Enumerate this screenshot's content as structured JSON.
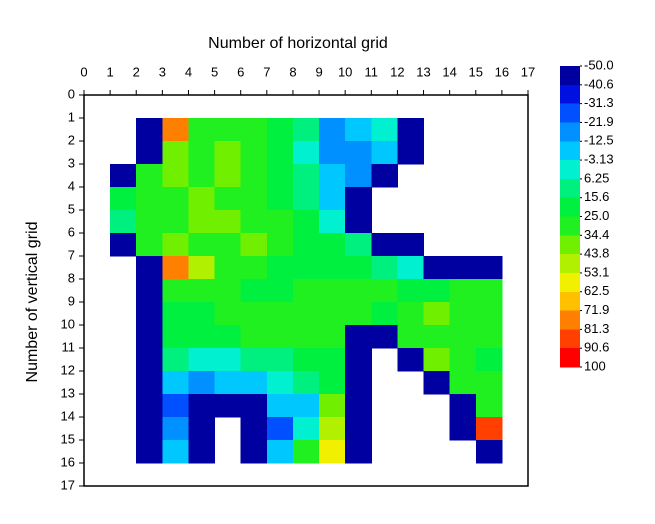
{
  "chart_data": {
    "type": "contour",
    "xlabel": "Number of horizontal grid",
    "ylabel": "Number of vertical grid",
    "xlim": [
      0,
      17
    ],
    "ylim": [
      0,
      17
    ],
    "y_inverted": true,
    "xticks": [
      0,
      1,
      2,
      3,
      4,
      5,
      6,
      7,
      8,
      9,
      10,
      11,
      12,
      13,
      14,
      15,
      16,
      17
    ],
    "yticks": [
      0,
      1,
      2,
      3,
      4,
      5,
      6,
      7,
      8,
      9,
      10,
      11,
      12,
      13,
      14,
      15,
      16,
      17
    ],
    "x": [
      1,
      2,
      3,
      4,
      5,
      6,
      7,
      8,
      9,
      10,
      11,
      12,
      13,
      14,
      15
    ],
    "y": [
      1,
      2,
      3,
      4,
      5,
      6,
      7,
      8,
      9,
      10,
      11,
      12,
      13,
      14,
      15
    ],
    "z": [
      [
        null,
        -50,
        80,
        30,
        30,
        30,
        20,
        10,
        -15,
        -10,
        0,
        -50,
        null,
        null,
        null
      ],
      [
        null,
        -50,
        35,
        30,
        35,
        30,
        25,
        5,
        -15,
        -20,
        -5,
        -50,
        null,
        null,
        null
      ],
      [
        -50,
        30,
        35,
        30,
        35,
        30,
        25,
        10,
        -10,
        -20,
        -50,
        null,
        null,
        null,
        null
      ],
      [
        20,
        30,
        30,
        35,
        30,
        30,
        25,
        10,
        -5,
        -50,
        null,
        null,
        null,
        null,
        null
      ],
      [
        15,
        30,
        30,
        35,
        40,
        30,
        30,
        20,
        5,
        -50,
        null,
        null,
        null,
        null,
        null
      ],
      [
        -50,
        30,
        35,
        30,
        30,
        35,
        30,
        25,
        20,
        10,
        -50,
        -50,
        null,
        null,
        null
      ],
      [
        null,
        -50,
        75,
        45,
        30,
        30,
        25,
        25,
        25,
        20,
        10,
        5,
        -50,
        -50,
        -50
      ],
      [
        null,
        -50,
        30,
        30,
        30,
        25,
        25,
        30,
        30,
        30,
        30,
        25,
        25,
        30,
        30
      ],
      [
        null,
        -50,
        25,
        25,
        30,
        30,
        30,
        30,
        30,
        30,
        25,
        30,
        35,
        30,
        30
      ],
      [
        null,
        -50,
        20,
        20,
        25,
        30,
        30,
        30,
        30,
        -50,
        -50,
        30,
        30,
        30,
        30
      ],
      [
        null,
        -50,
        10,
        5,
        5,
        10,
        15,
        20,
        25,
        -50,
        null,
        -50,
        35,
        30,
        25
      ],
      [
        null,
        -50,
        -10,
        -20,
        -10,
        -5,
        0,
        10,
        20,
        -50,
        null,
        null,
        -50,
        30,
        30
      ],
      [
        null,
        -50,
        -30,
        -50,
        -50,
        -50,
        -10,
        -5,
        40,
        -50,
        null,
        null,
        null,
        -50,
        30
      ],
      [
        null,
        -50,
        -20,
        -50,
        null,
        -50,
        -25,
        0,
        50,
        -50,
        null,
        null,
        null,
        -50,
        90
      ],
      [
        null,
        -50,
        -10,
        -50,
        null,
        -50,
        -10,
        30,
        60,
        -50,
        null,
        null,
        null,
        null,
        -50
      ]
    ],
    "levels": [
      {
        "value": -50,
        "label": "-50.0"
      },
      -40.6,
      -31.3,
      -21.9,
      -12.5,
      -3.13,
      6.25,
      15.6,
      {
        "value": 25,
        "label": "25.0"
      },
      34.4,
      43.8,
      53.1,
      62.5,
      71.9,
      81.3,
      90.6,
      100
    ],
    "colors": [
      "#0000a0",
      "#0010e0",
      "#0050ff",
      "#0090ff",
      "#00c8ff",
      "#00f0d0",
      "#00f080",
      "#00f040",
      "#20f020",
      "#70f000",
      "#b0f000",
      "#f0f000",
      "#ffc000",
      "#ff8000",
      "#ff4000",
      "#ff0000"
    ]
  }
}
